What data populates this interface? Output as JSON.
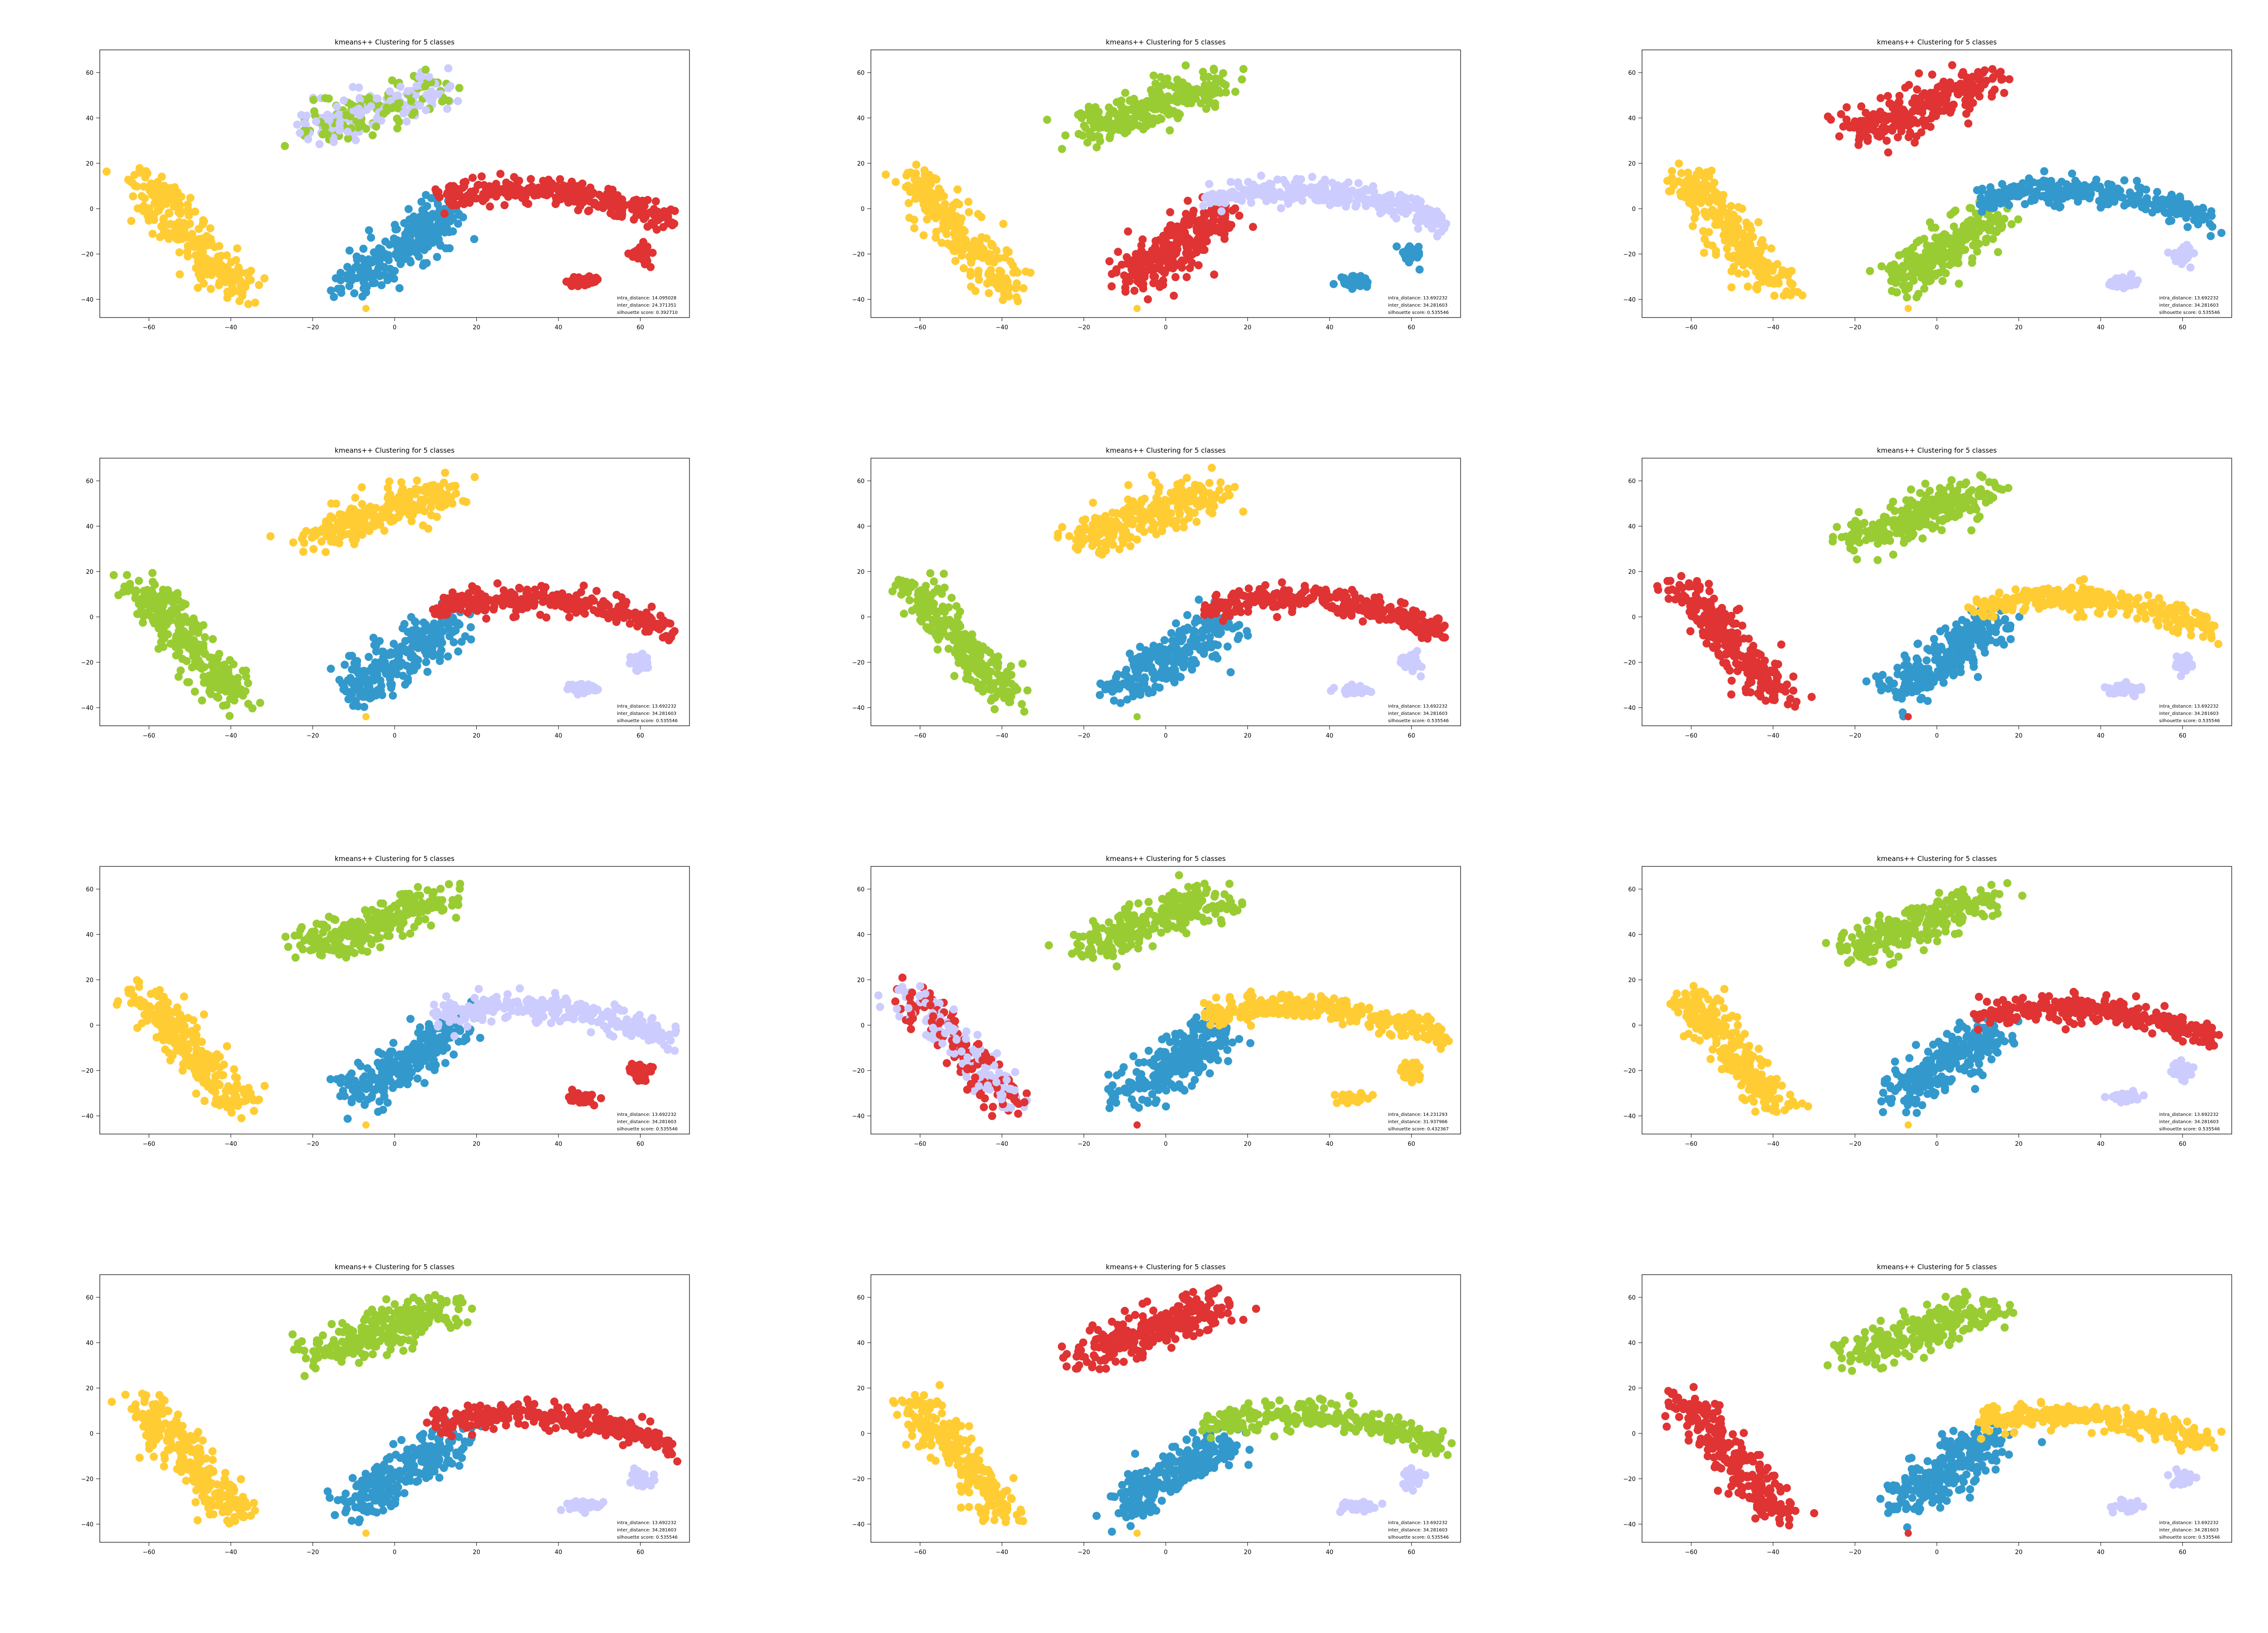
{
  "figure": {
    "rows": 4,
    "cols": 3
  },
  "colors": {
    "yellow": "#FFCC33",
    "green": "#99CC33",
    "red": "#E03333",
    "blue": "#3399CC",
    "lavender": "#CCCCFF"
  },
  "chart_data": [
    {
      "type": "scatter",
      "title": "kmeans++ Clustering for 5 classes",
      "xlim": [
        -72,
        72
      ],
      "ylim": [
        -48,
        70
      ],
      "xticks": [
        -60,
        -40,
        -20,
        0,
        20,
        40,
        60
      ],
      "yticks": [
        -40,
        -20,
        0,
        20,
        40,
        60
      ],
      "grid": false,
      "stats": [
        "intra_distance: 14.095028",
        "inter_distance: 24.371351",
        "silhouette score: 0.392710"
      ],
      "cluster_colors": {
        "left_band": "yellow",
        "top_blob": "green+lavender",
        "middle_left": "blue",
        "middle_right": "red",
        "small_a": "red",
        "small_b": "red",
        "outlier": "yellow"
      }
    },
    {
      "type": "scatter",
      "title": "kmeans++ Clustering for 5 classes",
      "xlim": [
        -72,
        72
      ],
      "ylim": [
        -48,
        70
      ],
      "xticks": [
        -60,
        -40,
        -20,
        0,
        20,
        40,
        60
      ],
      "yticks": [
        -40,
        -20,
        0,
        20,
        40,
        60
      ],
      "grid": false,
      "stats": [
        "intra_distance: 13.692232",
        "inter_distance: 34.281603",
        "silhouette score: 0.535546"
      ],
      "cluster_colors": {
        "left_band": "yellow",
        "top_blob": "green",
        "middle_left": "red",
        "middle_right": "lavender",
        "small_a": "blue",
        "small_b": "blue",
        "outlier": "yellow"
      }
    },
    {
      "type": "scatter",
      "title": "kmeans++ Clustering for 5 classes",
      "xlim": [
        -72,
        72
      ],
      "ylim": [
        -48,
        70
      ],
      "xticks": [
        -60,
        -40,
        -20,
        0,
        20,
        40,
        60
      ],
      "yticks": [
        -40,
        -20,
        0,
        20,
        40,
        60
      ],
      "grid": false,
      "stats": [
        "intra_distance: 13.692232",
        "inter_distance: 34.281603",
        "silhouette score: 0.535546"
      ],
      "cluster_colors": {
        "left_band": "yellow",
        "top_blob": "red",
        "middle_left": "green",
        "middle_right": "blue",
        "small_a": "lavender",
        "small_b": "lavender",
        "outlier": "yellow"
      }
    },
    {
      "type": "scatter",
      "title": "kmeans++ Clustering for 5 classes",
      "xlim": [
        -72,
        72
      ],
      "ylim": [
        -48,
        70
      ],
      "xticks": [
        -60,
        -40,
        -20,
        0,
        20,
        40,
        60
      ],
      "yticks": [
        -40,
        -20,
        0,
        20,
        40,
        60
      ],
      "grid": false,
      "stats": [
        "intra_distance: 13.692232",
        "inter_distance: 34.281603",
        "silhouette score: 0.535546"
      ],
      "cluster_colors": {
        "left_band": "green",
        "top_blob": "yellow",
        "middle_left": "blue",
        "middle_right": "red",
        "small_a": "lavender",
        "small_b": "lavender",
        "outlier": "yellow"
      }
    },
    {
      "type": "scatter",
      "title": "kmeans++ Clustering for 5 classes",
      "xlim": [
        -72,
        72
      ],
      "ylim": [
        -48,
        70
      ],
      "xticks": [
        -60,
        -40,
        -20,
        0,
        20,
        40,
        60
      ],
      "yticks": [
        -40,
        -20,
        0,
        20,
        40,
        60
      ],
      "grid": false,
      "stats": [
        "intra_distance: 13.692232",
        "inter_distance: 34.281603",
        "silhouette score: 0.535546"
      ],
      "cluster_colors": {
        "left_band": "green",
        "top_blob": "yellow",
        "middle_left": "blue",
        "middle_right": "red",
        "small_a": "lavender",
        "small_b": "lavender",
        "outlier": "green"
      }
    },
    {
      "type": "scatter",
      "title": "kmeans++ Clustering for 5 classes",
      "xlim": [
        -72,
        72
      ],
      "ylim": [
        -48,
        70
      ],
      "xticks": [
        -60,
        -40,
        -20,
        0,
        20,
        40,
        60
      ],
      "yticks": [
        -40,
        -20,
        0,
        20,
        40,
        60
      ],
      "grid": false,
      "stats": [
        "intra_distance: 13.692232",
        "inter_distance: 34.281603",
        "silhouette score: 0.535546"
      ],
      "cluster_colors": {
        "left_band": "red",
        "top_blob": "green",
        "middle_left": "blue",
        "middle_right": "yellow",
        "small_a": "lavender",
        "small_b": "lavender",
        "outlier": "red"
      }
    },
    {
      "type": "scatter",
      "title": "kmeans++ Clustering for 5 classes",
      "xlim": [
        -72,
        72
      ],
      "ylim": [
        -48,
        70
      ],
      "xticks": [
        -60,
        -40,
        -20,
        0,
        20,
        40,
        60
      ],
      "yticks": [
        -40,
        -20,
        0,
        20,
        40,
        60
      ],
      "grid": false,
      "stats": [
        "intra_distance: 13.692232",
        "inter_distance: 34.281603",
        "silhouette score: 0.535546"
      ],
      "cluster_colors": {
        "left_band": "yellow",
        "top_blob": "green",
        "middle_left": "blue",
        "middle_right": "lavender",
        "small_a": "red",
        "small_b": "red",
        "outlier": "yellow"
      }
    },
    {
      "type": "scatter",
      "title": "kmeans++ Clustering for 5 classes",
      "xlim": [
        -72,
        72
      ],
      "ylim": [
        -48,
        70
      ],
      "xticks": [
        -60,
        -40,
        -20,
        0,
        20,
        40,
        60
      ],
      "yticks": [
        -40,
        -20,
        0,
        20,
        40,
        60
      ],
      "grid": false,
      "stats": [
        "intra_distance: 14.231293",
        "inter_distance: 31.937966",
        "silhouette score: 0.432367"
      ],
      "cluster_colors": {
        "left_band": "red+lavender",
        "top_blob": "green",
        "middle_left": "blue",
        "middle_right": "yellow",
        "small_a": "yellow",
        "small_b": "yellow",
        "outlier": "red"
      }
    },
    {
      "type": "scatter",
      "title": "kmeans++ Clustering for 5 classes",
      "xlim": [
        -72,
        72
      ],
      "ylim": [
        -48,
        70
      ],
      "xticks": [
        -60,
        -40,
        -20,
        0,
        20,
        40,
        60
      ],
      "yticks": [
        -40,
        -20,
        0,
        20,
        40,
        60
      ],
      "grid": false,
      "stats": [
        "intra_distance: 13.692232",
        "inter_distance: 34.281603",
        "silhouette score: 0.535546"
      ],
      "cluster_colors": {
        "left_band": "yellow",
        "top_blob": "green",
        "middle_left": "blue",
        "middle_right": "red",
        "small_a": "lavender",
        "small_b": "lavender",
        "outlier": "yellow"
      }
    },
    {
      "type": "scatter",
      "title": "kmeans++ Clustering for 5 classes",
      "xlim": [
        -72,
        72
      ],
      "ylim": [
        -48,
        70
      ],
      "xticks": [
        -60,
        -40,
        -20,
        0,
        20,
        40,
        60
      ],
      "yticks": [
        -40,
        -20,
        0,
        20,
        40,
        60
      ],
      "grid": false,
      "stats": [
        "intra_distance: 13.692232",
        "inter_distance: 34.281603",
        "silhouette score: 0.535546"
      ],
      "cluster_colors": {
        "left_band": "yellow",
        "top_blob": "green",
        "middle_left": "blue",
        "middle_right": "red",
        "small_a": "lavender",
        "small_b": "lavender",
        "outlier": "yellow"
      }
    },
    {
      "type": "scatter",
      "title": "kmeans++ Clustering for 5 classes",
      "xlim": [
        -72,
        72
      ],
      "ylim": [
        -48,
        70
      ],
      "xticks": [
        -60,
        -40,
        -20,
        0,
        20,
        40,
        60
      ],
      "yticks": [
        -40,
        -20,
        0,
        20,
        40,
        60
      ],
      "grid": false,
      "stats": [
        "intra_distance: 13.692232",
        "inter_distance: 34.281603",
        "silhouette score: 0.535546"
      ],
      "cluster_colors": {
        "left_band": "yellow",
        "top_blob": "red",
        "middle_left": "blue",
        "middle_right": "green",
        "small_a": "lavender",
        "small_b": "lavender",
        "outlier": "yellow"
      }
    },
    {
      "type": "scatter",
      "title": "kmeans++ Clustering for 5 classes",
      "xlim": [
        -72,
        72
      ],
      "ylim": [
        -48,
        70
      ],
      "xticks": [
        -60,
        -40,
        -20,
        0,
        20,
        40,
        60
      ],
      "yticks": [
        -40,
        -20,
        0,
        20,
        40,
        60
      ],
      "grid": false,
      "stats": [
        "intra_distance: 13.692232",
        "inter_distance: 34.281603",
        "silhouette score: 0.535546"
      ],
      "cluster_colors": {
        "left_band": "red",
        "top_blob": "green",
        "middle_left": "blue",
        "middle_right": "yellow",
        "small_a": "lavender",
        "small_b": "lavender",
        "outlier": "red"
      }
    }
  ]
}
